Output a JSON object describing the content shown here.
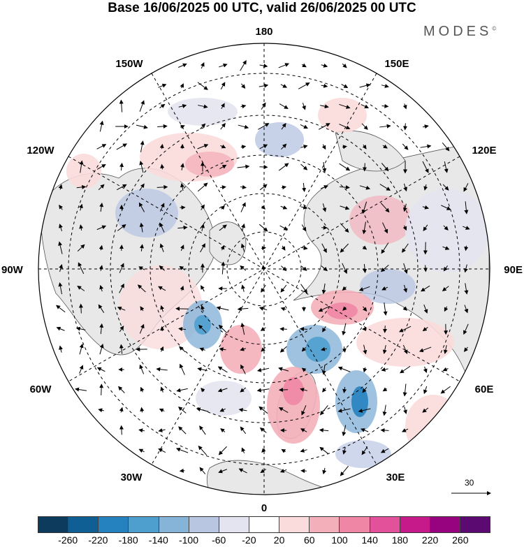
{
  "title": "Base 16/06/2025 00 UTC, valid 26/06/2025 00 UTC",
  "brand": "MODES",
  "brand_mark": "©",
  "map": {
    "lon_labels": {
      "top": "180",
      "bottom": "0",
      "left": "90W",
      "right": "90E",
      "top_left": "150W",
      "top_right": "150E",
      "upper_left": "120W",
      "upper_right": "120E",
      "lower_left": "60W",
      "lower_right": "60E",
      "bottom_left": "30W",
      "bottom_right": "30E"
    },
    "reference_vector": "30",
    "land_color": "#e8e8e8",
    "ocean_color": "#ffffff"
  },
  "colorbar": {
    "colors": [
      "#0d3b5e",
      "#0f5f94",
      "#2682bf",
      "#4e9fce",
      "#86b3d8",
      "#b9c6e2",
      "#e4e4f1",
      "#ffffff",
      "#fbdcdc",
      "#f4b0ba",
      "#ef86a5",
      "#e2519a",
      "#c6198a",
      "#97037f",
      "#5b0a72"
    ],
    "ticks": [
      "-260",
      "-220",
      "-180",
      "-140",
      "-100",
      "-60",
      "-20",
      "20",
      "60",
      "100",
      "140",
      "180",
      "220",
      "260"
    ]
  }
}
